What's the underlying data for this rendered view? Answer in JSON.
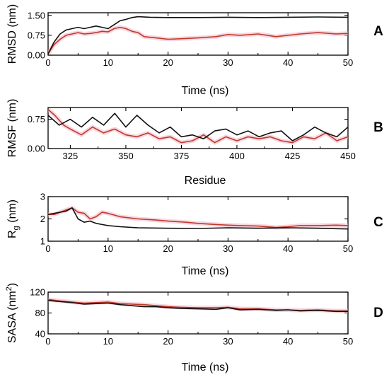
{
  "colors": {
    "black_series": "#111111",
    "red_series": "#c0392b",
    "red_shadow": "#f2b6c6"
  },
  "chart_data": [
    {
      "panel": "A",
      "type": "line",
      "xlabel": "Time (ns)",
      "ylabel": "RMSD (nm)",
      "xlim": [
        0,
        50
      ],
      "ylim": [
        0,
        1.6
      ],
      "xticks": [
        0,
        10,
        20,
        30,
        40,
        50
      ],
      "yticks": [
        0.0,
        0.75,
        1.5
      ],
      "ytick_labels": [
        "0.00",
        "0.75",
        "1.50"
      ],
      "series": [
        {
          "color": "#111111",
          "x": [
            0,
            1,
            2,
            3,
            4,
            5,
            6,
            7,
            8,
            9,
            10,
            11,
            12,
            13,
            14,
            15,
            17,
            20,
            25,
            30,
            35,
            40,
            45,
            50
          ],
          "y": [
            0.05,
            0.5,
            0.8,
            0.95,
            1.0,
            1.05,
            1.0,
            1.05,
            1.1,
            1.05,
            1.0,
            1.15,
            1.3,
            1.35,
            1.42,
            1.45,
            1.43,
            1.42,
            1.42,
            1.43,
            1.42,
            1.43,
            1.44,
            1.43
          ]
        },
        {
          "color": "#c0392b",
          "x": [
            0,
            1,
            2,
            3,
            4,
            5,
            6,
            7,
            8,
            9,
            10,
            11,
            12,
            13,
            14,
            15,
            16,
            18,
            20,
            22,
            25,
            28,
            30,
            32,
            35,
            38,
            40,
            42,
            45,
            48,
            50
          ],
          "y": [
            0.05,
            0.4,
            0.6,
            0.75,
            0.8,
            0.85,
            0.8,
            0.82,
            0.85,
            0.9,
            0.88,
            1.0,
            1.05,
            1.0,
            0.9,
            0.85,
            0.7,
            0.65,
            0.6,
            0.62,
            0.65,
            0.7,
            0.78,
            0.75,
            0.8,
            0.7,
            0.75,
            0.8,
            0.85,
            0.8,
            0.82
          ]
        }
      ]
    },
    {
      "panel": "B",
      "type": "line",
      "xlabel": "Residue",
      "ylabel": "RMSF (nm)",
      "xlim": [
        315,
        450
      ],
      "ylim": [
        0,
        1.05
      ],
      "xticks": [
        325,
        350,
        375,
        400,
        425,
        450
      ],
      "yticks": [
        0.0,
        0.75
      ],
      "ytick_labels": [
        "0.00",
        "0.75"
      ],
      "series": [
        {
          "color": "#111111",
          "x": [
            315,
            320,
            325,
            330,
            335,
            340,
            345,
            350,
            355,
            360,
            365,
            370,
            375,
            380,
            385,
            390,
            395,
            400,
            405,
            410,
            415,
            420,
            425,
            430,
            435,
            440,
            445,
            450
          ],
          "y": [
            0.85,
            0.6,
            0.75,
            0.55,
            0.8,
            0.6,
            0.9,
            0.55,
            0.85,
            0.6,
            0.4,
            0.55,
            0.3,
            0.35,
            0.25,
            0.45,
            0.5,
            0.35,
            0.45,
            0.3,
            0.4,
            0.45,
            0.2,
            0.35,
            0.55,
            0.4,
            0.3,
            0.55
          ]
        },
        {
          "color": "#c0392b",
          "x": [
            315,
            318,
            322,
            325,
            330,
            335,
            340,
            345,
            350,
            355,
            360,
            365,
            370,
            375,
            380,
            385,
            390,
            395,
            400,
            405,
            410,
            415,
            420,
            425,
            430,
            435,
            440,
            445,
            450
          ],
          "y": [
            1.0,
            0.85,
            0.6,
            0.5,
            0.35,
            0.55,
            0.4,
            0.5,
            0.35,
            0.3,
            0.4,
            0.25,
            0.3,
            0.15,
            0.2,
            0.35,
            0.15,
            0.3,
            0.2,
            0.3,
            0.25,
            0.3,
            0.2,
            0.15,
            0.3,
            0.25,
            0.4,
            0.2,
            0.3
          ]
        }
      ]
    },
    {
      "panel": "C",
      "type": "line",
      "xlabel": "Time (ns)",
      "ylabel_main": "R",
      "ylabel_sub": "g",
      "ylabel_tail": " (nm)",
      "xlim": [
        0,
        50
      ],
      "ylim": [
        1,
        3
      ],
      "xticks": [
        0,
        10,
        20,
        30,
        40,
        50
      ],
      "yticks": [
        1,
        2,
        3
      ],
      "ytick_labels": [
        "1",
        "2",
        "3"
      ],
      "series": [
        {
          "color": "#111111",
          "x": [
            0,
            1,
            2,
            3,
            4,
            5,
            6,
            7,
            8,
            9,
            10,
            12,
            15,
            20,
            25,
            30,
            35,
            40,
            45,
            50
          ],
          "y": [
            2.2,
            2.25,
            2.3,
            2.35,
            2.5,
            2.0,
            1.85,
            1.9,
            1.8,
            1.75,
            1.7,
            1.65,
            1.6,
            1.58,
            1.57,
            1.6,
            1.58,
            1.6,
            1.58,
            1.55
          ]
        },
        {
          "color": "#c0392b",
          "x": [
            0,
            1,
            2,
            3,
            4,
            5,
            6,
            7,
            8,
            9,
            10,
            12,
            15,
            18,
            20,
            23,
            25,
            28,
            30,
            32,
            35,
            38,
            40,
            42,
            45,
            48,
            50
          ],
          "y": [
            2.2,
            2.2,
            2.3,
            2.4,
            2.5,
            2.3,
            2.25,
            2.0,
            2.1,
            2.3,
            2.25,
            2.1,
            2.0,
            1.95,
            1.9,
            1.85,
            1.8,
            1.75,
            1.72,
            1.7,
            1.68,
            1.62,
            1.65,
            1.7,
            1.7,
            1.72,
            1.7
          ]
        }
      ]
    },
    {
      "panel": "D",
      "type": "line",
      "xlabel": "Time (ns)",
      "ylabel_main": "SASA (nm",
      "ylabel_sup": "2",
      "ylabel_tail": ")",
      "xlim": [
        0,
        50
      ],
      "ylim": [
        40,
        120
      ],
      "xticks": [
        0,
        10,
        20,
        30,
        40,
        50
      ],
      "yticks": [
        40,
        80,
        120
      ],
      "ytick_labels": [
        "40",
        "80",
        "120"
      ],
      "series": [
        {
          "color": "#111111",
          "x": [
            0,
            2,
            4,
            6,
            8,
            10,
            12,
            14,
            16,
            18,
            20,
            22,
            25,
            28,
            30,
            32,
            35,
            38,
            40,
            42,
            45,
            48,
            50
          ],
          "y": [
            104,
            102,
            100,
            97,
            98,
            99,
            96,
            94,
            92,
            92,
            90,
            89,
            88,
            87,
            90,
            86,
            87,
            85,
            86,
            84,
            85,
            83,
            83
          ]
        },
        {
          "color": "#c0392b",
          "x": [
            0,
            2,
            4,
            6,
            8,
            10,
            12,
            14,
            16,
            18,
            20,
            22,
            25,
            28,
            30,
            32,
            35,
            38,
            40,
            42,
            45,
            48,
            50
          ],
          "y": [
            106,
            103,
            101,
            99,
            100,
            101,
            98,
            97,
            96,
            94,
            92,
            91,
            90,
            90,
            91,
            88,
            88,
            86,
            86,
            85,
            86,
            84,
            84
          ]
        }
      ]
    }
  ]
}
